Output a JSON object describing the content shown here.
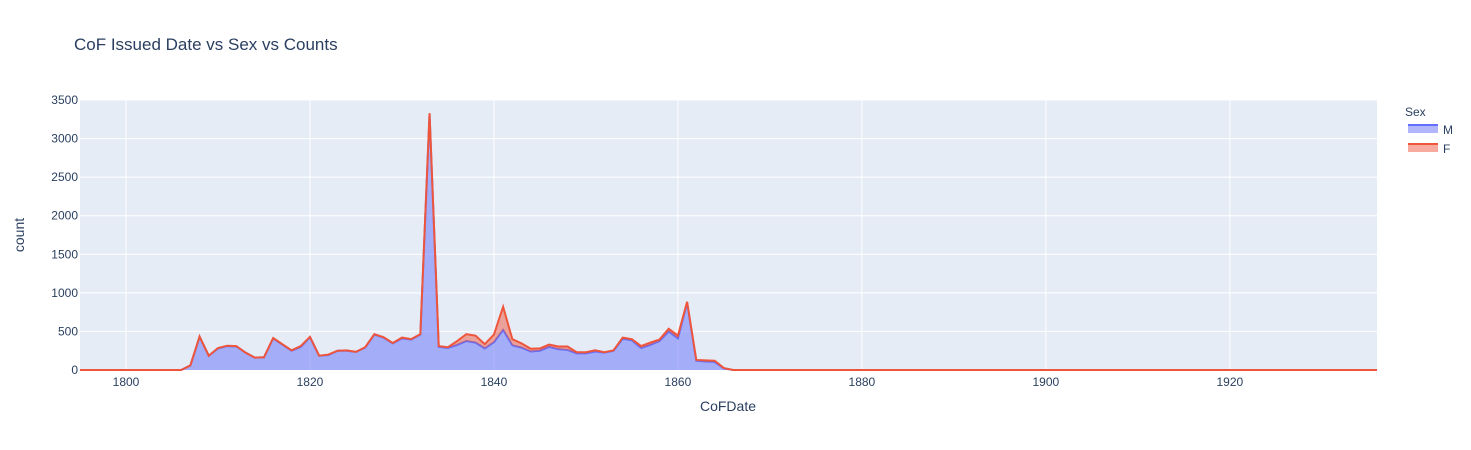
{
  "chart_data": {
    "type": "area",
    "title": "CoF Issued Date vs Sex vs Counts",
    "xlabel": "CoFDate",
    "ylabel": "count",
    "xlim": [
      1795,
      1936
    ],
    "ylim": [
      0,
      3500
    ],
    "x_ticks": [
      1800,
      1820,
      1840,
      1860,
      1880,
      1900,
      1920
    ],
    "y_ticks": [
      0,
      500,
      1000,
      1500,
      2000,
      2500,
      3000,
      3500
    ],
    "grid": true,
    "stacked": true,
    "legend": {
      "title": "Sex",
      "position": "top-right"
    },
    "x": [
      1795,
      1800,
      1806,
      1807,
      1808,
      1809,
      1810,
      1811,
      1812,
      1813,
      1814,
      1815,
      1816,
      1817,
      1818,
      1819,
      1820,
      1821,
      1822,
      1823,
      1824,
      1825,
      1826,
      1827,
      1828,
      1829,
      1830,
      1831,
      1832,
      1833,
      1834,
      1835,
      1836,
      1837,
      1838,
      1839,
      1840,
      1841,
      1842,
      1843,
      1844,
      1845,
      1846,
      1847,
      1848,
      1849,
      1850,
      1851,
      1852,
      1853,
      1854,
      1855,
      1856,
      1857,
      1858,
      1859,
      1860,
      1861,
      1862,
      1863,
      1864,
      1865,
      1866,
      1870,
      1936
    ],
    "series": [
      {
        "name": "M",
        "color": "#636efa",
        "values": [
          0,
          0,
          0,
          60,
          430,
          185,
          280,
          310,
          305,
          225,
          160,
          165,
          410,
          330,
          250,
          300,
          425,
          185,
          195,
          250,
          250,
          235,
          290,
          460,
          420,
          345,
          410,
          395,
          460,
          3320,
          300,
          285,
          325,
          375,
          355,
          280,
          360,
          520,
          320,
          290,
          240,
          250,
          300,
          270,
          260,
          215,
          215,
          240,
          225,
          250,
          405,
          385,
          285,
          325,
          375,
          500,
          410,
          870,
          120,
          110,
          105,
          20,
          0,
          0,
          0
        ]
      },
      {
        "name": "F",
        "color": "#ef553b",
        "values": [
          0,
          0,
          0,
          0,
          5,
          0,
          5,
          5,
          5,
          0,
          0,
          0,
          5,
          5,
          5,
          10,
          5,
          0,
          5,
          0,
          5,
          0,
          5,
          5,
          5,
          5,
          10,
          5,
          5,
          10,
          10,
          10,
          50,
          90,
          90,
          55,
          100,
          300,
          80,
          55,
          35,
          30,
          30,
          35,
          45,
          15,
          15,
          15,
          5,
          5,
          15,
          15,
          25,
          30,
          20,
          35,
          35,
          15,
          10,
          15,
          15,
          5,
          0,
          0,
          0
        ]
      }
    ]
  }
}
